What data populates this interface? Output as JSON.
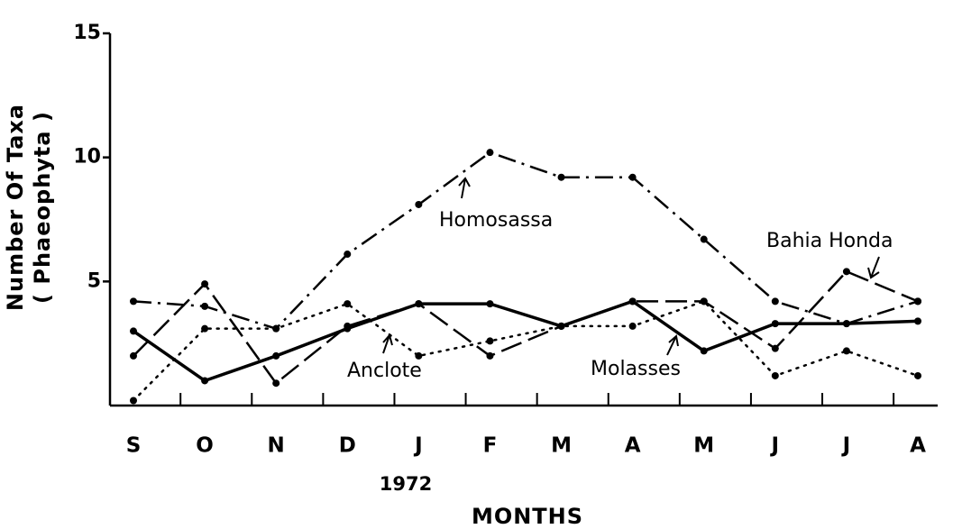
{
  "chart_data": {
    "type": "line",
    "ylabel": [
      "Number Of Taxa",
      "( Phaeophyta )"
    ],
    "xlabel": "MONTHS",
    "year_label": "1972",
    "categories": [
      "S",
      "O",
      "N",
      "D",
      "J",
      "F",
      "M",
      "A",
      "M",
      "J",
      "J",
      "A"
    ],
    "series": [
      {
        "name": "Homosassa",
        "color": "#000000",
        "linestyle": "dashdot",
        "values": [
          4.2,
          4.0,
          3.1,
          6.1,
          8.1,
          10.2,
          9.2,
          9.2,
          6.7,
          4.2,
          3.3,
          4.2
        ]
      },
      {
        "name": "Bahia Honda",
        "color": "#000000",
        "linestyle": "dashed",
        "values": [
          2.0,
          4.9,
          0.9,
          3.2,
          4.1,
          2.0,
          3.2,
          4.2,
          4.2,
          2.3,
          5.4,
          4.2
        ]
      },
      {
        "name": "Anclote",
        "color": "#000000",
        "linestyle": "dotted",
        "values": [
          0.2,
          3.1,
          3.1,
          4.1,
          2.0,
          2.6,
          3.2,
          3.2,
          4.2,
          1.2,
          2.2,
          1.2
        ]
      },
      {
        "name": "Molasses",
        "color": "#000000",
        "linestyle": "solid",
        "values": [
          3.0,
          1.0,
          2.0,
          3.1,
          4.1,
          4.1,
          3.2,
          4.2,
          2.2,
          3.3,
          3.3,
          3.4
        ]
      }
    ],
    "ylim": [
      0,
      15
    ],
    "yticks": [
      5,
      10,
      15
    ],
    "grid": false
  }
}
